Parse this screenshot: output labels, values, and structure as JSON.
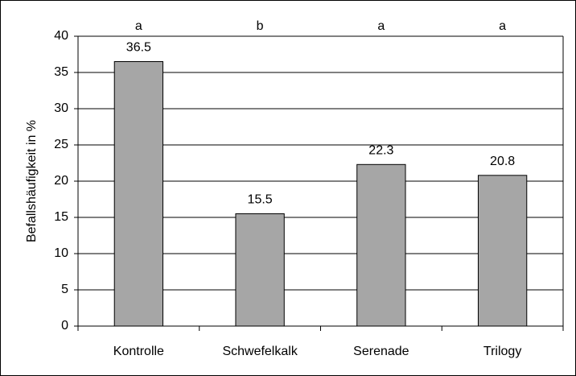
{
  "chart_data": {
    "type": "bar",
    "y_label": "Befallshäufigkeit in %",
    "categories": [
      "Kontrolle",
      "Schwefelkalk",
      "Serenade",
      "Trilogy"
    ],
    "values": [
      36.5,
      15.5,
      22.3,
      20.8
    ],
    "annotations": [
      "a",
      "b",
      "a",
      "a"
    ],
    "color": "#a6a6a6",
    "ylim": [
      0,
      40
    ],
    "yticks": [
      0,
      5,
      10,
      15,
      20,
      25,
      30,
      35,
      40
    ],
    "grid": true
  }
}
